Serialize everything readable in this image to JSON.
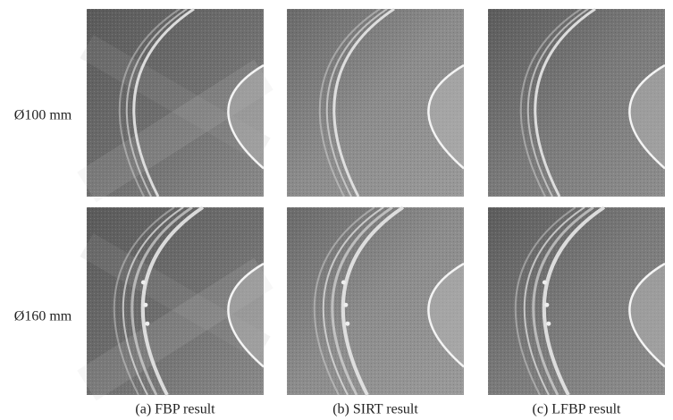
{
  "rows": [
    {
      "label": "Ø100 mm"
    },
    {
      "label": "Ø160 mm"
    }
  ],
  "columns": [
    {
      "caption": "(a) FBP result"
    },
    {
      "caption": "(b) SIRT result"
    },
    {
      "caption": "(c) LFBP result"
    }
  ]
}
